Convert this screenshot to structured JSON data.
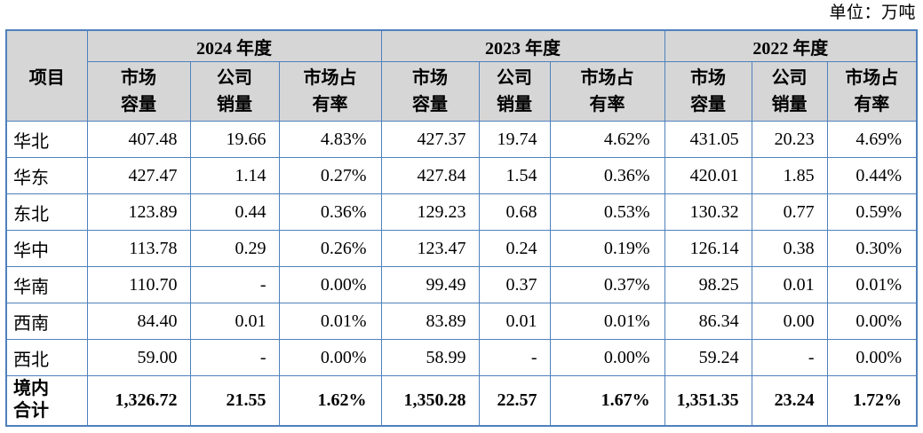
{
  "unit_label": "单位：万吨",
  "colors": {
    "border_blue": "#4F81BD",
    "header_bg": "#D6D6D6"
  },
  "table": {
    "item_header": "项目",
    "years": [
      "2024 年度",
      "2023 年度",
      "2022 年度"
    ],
    "sub_headers": [
      "市场\n容量",
      "公司\n销量",
      "市场占\n有率"
    ],
    "rows": [
      {
        "label": "华北",
        "values": [
          "407.48",
          "19.66",
          "4.83%",
          "427.37",
          "19.74",
          "4.62%",
          "431.05",
          "20.23",
          "4.69%"
        ]
      },
      {
        "label": "华东",
        "values": [
          "427.47",
          "1.14",
          "0.27%",
          "427.84",
          "1.54",
          "0.36%",
          "420.01",
          "1.85",
          "0.44%"
        ]
      },
      {
        "label": "东北",
        "values": [
          "123.89",
          "0.44",
          "0.36%",
          "129.23",
          "0.68",
          "0.53%",
          "130.32",
          "0.77",
          "0.59%"
        ]
      },
      {
        "label": "华中",
        "values": [
          "113.78",
          "0.29",
          "0.26%",
          "123.47",
          "0.24",
          "0.19%",
          "126.14",
          "0.38",
          "0.30%"
        ]
      },
      {
        "label": "华南",
        "values": [
          "110.70",
          "-",
          "0.00%",
          "99.49",
          "0.37",
          "0.37%",
          "98.25",
          "0.01",
          "0.01%"
        ]
      },
      {
        "label": "西南",
        "values": [
          "84.40",
          "0.01",
          "0.01%",
          "83.89",
          "0.01",
          "0.01%",
          "86.34",
          "0.00",
          "0.00%"
        ]
      },
      {
        "label": "西北",
        "values": [
          "59.00",
          "-",
          "0.00%",
          "58.99",
          "-",
          "0.00%",
          "59.24",
          "-",
          "0.00%"
        ]
      }
    ],
    "total_row": {
      "label": "境内\n合计",
      "values": [
        "1,326.72",
        "21.55",
        "1.62%",
        "1,350.28",
        "22.57",
        "1.67%",
        "1,351.35",
        "23.24",
        "1.72%"
      ]
    }
  }
}
